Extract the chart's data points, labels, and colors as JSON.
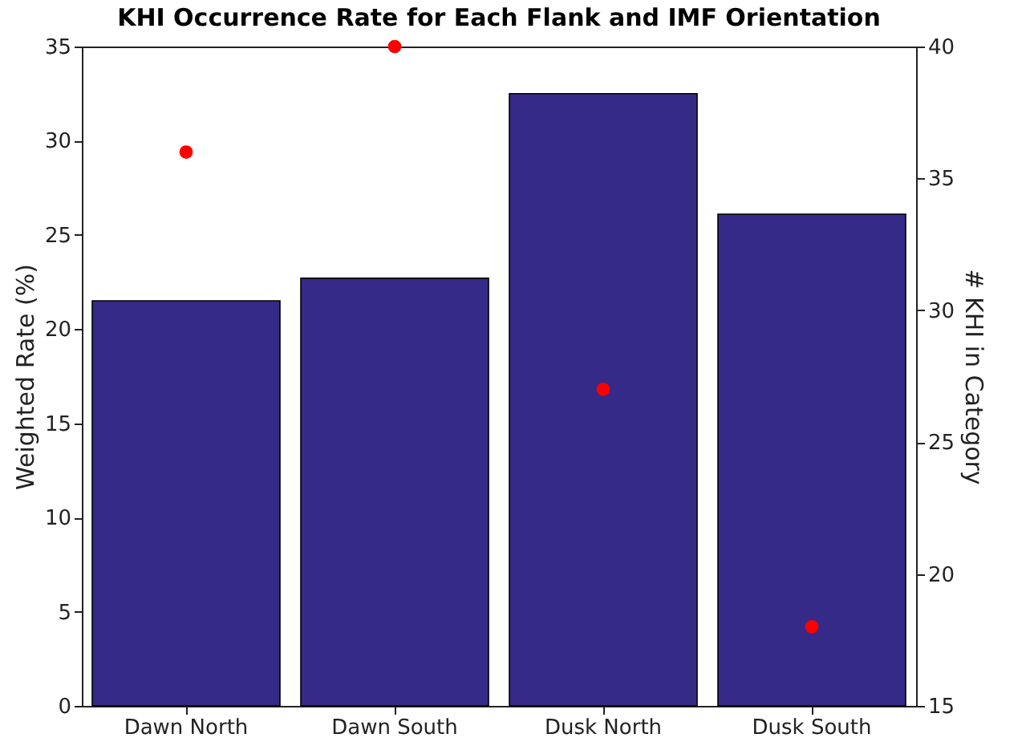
{
  "chart_data": {
    "type": "bar",
    "title": "KHI Occurrence Rate for Each Flank and IMF Orientation",
    "ylabel": "Weighted Rate (%)",
    "y2label": "# KHI in Category",
    "categories": [
      "Dawn North",
      "Dawn South",
      "Dusk North",
      "Dusk South"
    ],
    "series": [
      {
        "color": "#352a87",
        "values": [
          21.5,
          22.7,
          32.5,
          26.1
        ]
      },
      {
        "type": "scatter",
        "axis": "y2",
        "color": "#ff0000",
        "values": [
          36,
          40,
          27,
          18
        ]
      }
    ],
    "ylim": [
      0,
      35
    ],
    "yticks": [
      0,
      5,
      10,
      15,
      20,
      25,
      30,
      35
    ],
    "y2lim": [
      15,
      40
    ],
    "y2ticks": [
      15,
      20,
      25,
      30,
      35,
      40
    ],
    "marker": "circle"
  }
}
